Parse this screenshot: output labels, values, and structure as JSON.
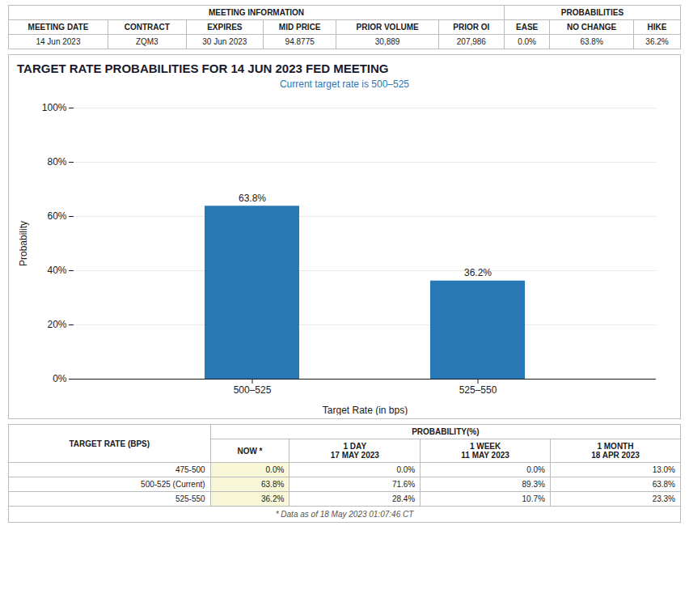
{
  "chart_data": {
    "type": "bar",
    "title": "TARGET RATE PROBABILITIES FOR 14 JUN 2023 FED MEETING",
    "subtitle": "Current target rate is 500–525",
    "xlabel": "Target Rate (in bps)",
    "ylabel": "Probability",
    "categories": [
      "500–525",
      "525–550"
    ],
    "values": [
      63.8,
      36.2
    ],
    "value_labels": [
      "63.8%",
      "36.2%"
    ],
    "data_labels": true,
    "color": "#2878b5",
    "ylim": [
      0,
      100
    ],
    "yticks": [
      {
        "value": 0,
        "label": "0%"
      },
      {
        "value": 20,
        "label": "20%"
      },
      {
        "value": 40,
        "label": "40%"
      },
      {
        "value": 60,
        "label": "60%"
      },
      {
        "value": 80,
        "label": "80%"
      },
      {
        "value": 100,
        "label": "100%"
      }
    ],
    "grid": true
  },
  "top_table": {
    "groups": [
      {
        "label": "MEETING INFORMATION",
        "columns": [
          "MEETING DATE",
          "CONTRACT",
          "EXPIRES",
          "MID PRICE",
          "PRIOR VOLUME",
          "PRIOR OI"
        ],
        "values": [
          "14 Jun 2023",
          "ZQM3",
          "30 Jun 2023",
          "94.8775",
          "30,889",
          "207,986"
        ]
      },
      {
        "label": "PROBABILITIES",
        "columns": [
          "EASE",
          "NO CHANGE",
          "HIKE"
        ],
        "values": [
          "0.0%",
          "63.8%",
          "36.2%"
        ]
      }
    ]
  },
  "bottom_table": {
    "row_header": "TARGET RATE (BPS)",
    "column_group": "PROBABILITY(%)",
    "columns": [
      "NOW *",
      "1 DAY\n17 MAY 2023",
      "1 WEEK\n11 MAY 2023",
      "1 MONTH\n18 APR 2023"
    ],
    "rows": [
      [
        "475-500",
        "0.0%",
        "0.0%",
        "0.0%",
        "13.0%"
      ],
      [
        "500-525 (Current)",
        "63.8%",
        "71.6%",
        "89.3%",
        "63.8%"
      ],
      [
        "525-550",
        "36.2%",
        "28.4%",
        "10.7%",
        "23.3%"
      ]
    ],
    "highlight_color": "#f8f8d8",
    "footer": "* Data as of 18 May 2023 01:07:46 CT"
  }
}
